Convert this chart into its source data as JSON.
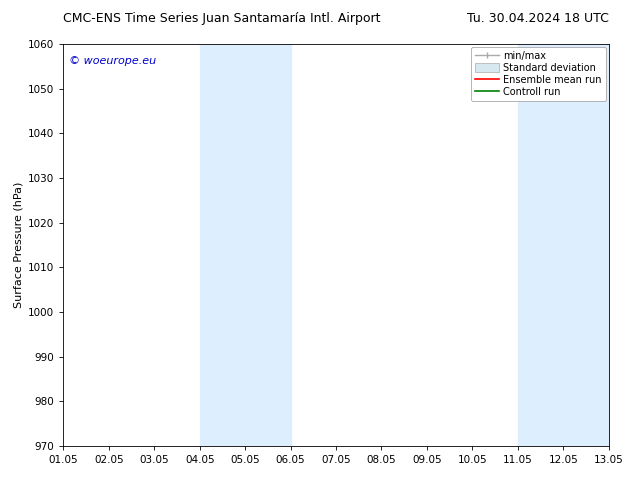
{
  "title_left": "CMC-ENS Time Series Juan Santamaría Intl. Airport",
  "title_right": "Tu. 30.04.2024 18 UTC",
  "ylabel": "Surface Pressure (hPa)",
  "ylim": [
    970,
    1060
  ],
  "yticks": [
    970,
    980,
    990,
    1000,
    1010,
    1020,
    1030,
    1040,
    1050,
    1060
  ],
  "xlim": [
    0,
    12
  ],
  "xtick_labels": [
    "01.05",
    "02.05",
    "03.05",
    "04.05",
    "05.05",
    "06.05",
    "07.05",
    "08.05",
    "09.05",
    "10.05",
    "11.05",
    "12.05",
    "13.05"
  ],
  "xtick_positions": [
    0,
    1,
    2,
    3,
    4,
    5,
    6,
    7,
    8,
    9,
    10,
    11,
    12
  ],
  "shaded_bands": [
    {
      "xmin": 3,
      "xmax": 5,
      "color": "#ddeeff"
    },
    {
      "xmin": 10,
      "xmax": 12,
      "color": "#ddeeff"
    }
  ],
  "watermark": "© woeurope.eu",
  "watermark_color": "#0000cc",
  "legend_labels": [
    "min/max",
    "Standard deviation",
    "Ensemble mean run",
    "Controll run"
  ],
  "legend_colors": [
    "#aaaaaa",
    "#cccccc",
    "#ff0000",
    "#008000"
  ],
  "background_color": "#ffffff",
  "title_fontsize": 9,
  "axis_fontsize": 8,
  "tick_fontsize": 7.5,
  "watermark_fontsize": 8,
  "legend_fontsize": 7
}
